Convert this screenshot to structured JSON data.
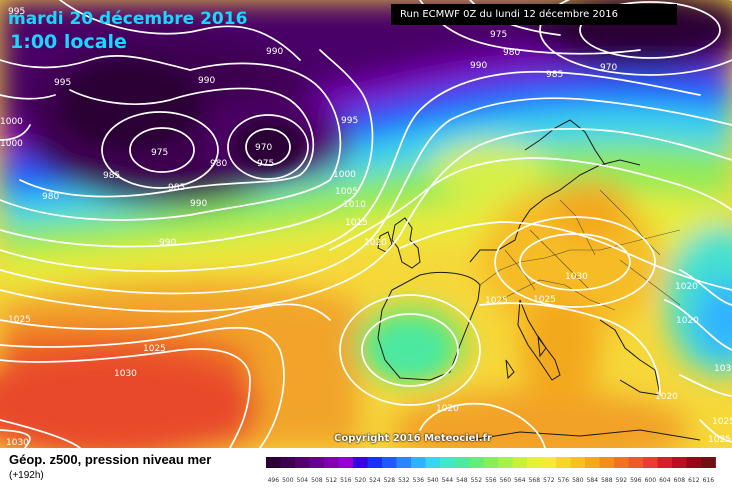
{
  "header": {
    "date": "mardi 20 décembre 2016",
    "time": "1:00 locale",
    "run": "Run ECMWF 0Z du lundi 12 décembre 2016"
  },
  "footer": {
    "title": "Géop. z500, pression niveau mer",
    "subtitle": "(+192h)",
    "copyright": "Copyright 2016 Meteociel.fr"
  },
  "legend": {
    "values": [
      "496",
      "500",
      "504",
      "508",
      "512",
      "516",
      "520",
      "524",
      "528",
      "532",
      "536",
      "540",
      "544",
      "548",
      "552",
      "556",
      "560",
      "564",
      "568",
      "572",
      "576",
      "580",
      "584",
      "588",
      "592",
      "596",
      "600",
      "604",
      "608",
      "612",
      "616"
    ],
    "colors": [
      "#2a0036",
      "#3c0050",
      "#520070",
      "#680090",
      "#8000b0",
      "#9600d0",
      "#3a00e6",
      "#1a2fff",
      "#1e5aff",
      "#2a86ff",
      "#30b2ff",
      "#3ad4ee",
      "#44e6c8",
      "#4ee8a0",
      "#66ec78",
      "#86ee5a",
      "#a8f04c",
      "#c8f040",
      "#e6f03a",
      "#f6ea36",
      "#f8d42c",
      "#f8c024",
      "#f4a81c",
      "#f28e1e",
      "#ee7424",
      "#ea5a2a",
      "#e63e30",
      "#d81e2a",
      "#b81020",
      "#960818",
      "#701010"
    ]
  },
  "isobars": [
    {
      "text": "995"
    },
    {
      "text": "990"
    },
    {
      "text": "990"
    },
    {
      "text": "995"
    },
    {
      "text": "1000"
    },
    {
      "text": "1000"
    },
    {
      "text": "975"
    },
    {
      "text": "980"
    },
    {
      "text": "975"
    },
    {
      "text": "970"
    },
    {
      "text": "985"
    },
    {
      "text": "985"
    },
    {
      "text": "990"
    },
    {
      "text": "980"
    },
    {
      "text": "990"
    },
    {
      "text": "995"
    },
    {
      "text": "1000"
    },
    {
      "text": "1005"
    },
    {
      "text": "1010"
    },
    {
      "text": "1015"
    },
    {
      "text": "1020"
    },
    {
      "text": "975"
    },
    {
      "text": "980"
    },
    {
      "text": "990"
    },
    {
      "text": "985"
    },
    {
      "text": "970"
    },
    {
      "text": "1030"
    },
    {
      "text": "1025"
    },
    {
      "text": "1025"
    },
    {
      "text": "1025"
    },
    {
      "text": "1025"
    },
    {
      "text": "1030"
    },
    {
      "text": "1020"
    },
    {
      "text": "1020"
    },
    {
      "text": "1020"
    },
    {
      "text": "1025"
    },
    {
      "text": "1030"
    },
    {
      "text": "1025"
    },
    {
      "text": "1020"
    },
    {
      "text": "1030"
    }
  ]
}
